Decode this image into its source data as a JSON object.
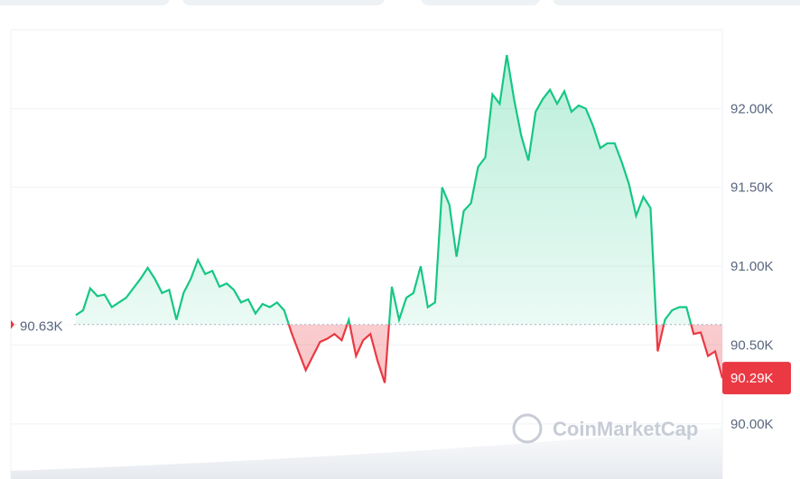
{
  "chart_data": {
    "type": "line",
    "values": [
      90.69,
      90.72,
      90.86,
      90.81,
      90.82,
      90.74,
      90.77,
      90.8,
      90.86,
      90.92,
      90.99,
      90.92,
      90.83,
      90.85,
      90.66,
      90.83,
      90.92,
      91.04,
      90.95,
      90.97,
      90.87,
      90.89,
      90.85,
      90.77,
      90.79,
      90.7,
      90.76,
      90.74,
      90.77,
      90.72,
      90.58,
      90.46,
      90.34,
      90.43,
      90.52,
      90.54,
      90.57,
      90.53,
      90.66,
      90.43,
      90.53,
      90.57,
      90.4,
      90.26,
      90.87,
      90.66,
      90.8,
      90.83,
      91.0,
      90.74,
      90.77,
      91.5,
      91.39,
      91.06,
      91.35,
      91.4,
      91.63,
      91.69,
      92.09,
      92.03,
      92.34,
      92.06,
      91.83,
      91.67,
      91.98,
      92.06,
      92.12,
      92.03,
      92.11,
      91.98,
      92.02,
      92.0,
      91.89,
      91.75,
      91.78,
      91.78,
      91.66,
      91.52,
      91.32,
      91.44,
      91.37,
      90.46,
      90.66,
      90.72,
      90.74,
      90.74,
      90.57,
      90.58,
      90.43,
      90.46,
      90.29
    ],
    "ylim": [
      89.65,
      92.5
    ],
    "yticks": [
      {
        "value": 90,
        "label": "90.00K"
      },
      {
        "value": 90.5,
        "label": "90.50K"
      },
      {
        "value": 91,
        "label": "91.00K"
      },
      {
        "value": 91.5,
        "label": "91.50K"
      },
      {
        "value": 92,
        "label": "92.00K"
      }
    ],
    "baseline": {
      "value": 90.63,
      "label": "90.63K"
    },
    "last_value_label": "90.29K",
    "up_color": "#16c784",
    "down_color": "#ea3943",
    "watermark": "CoinMarketCap",
    "grid": true
  }
}
